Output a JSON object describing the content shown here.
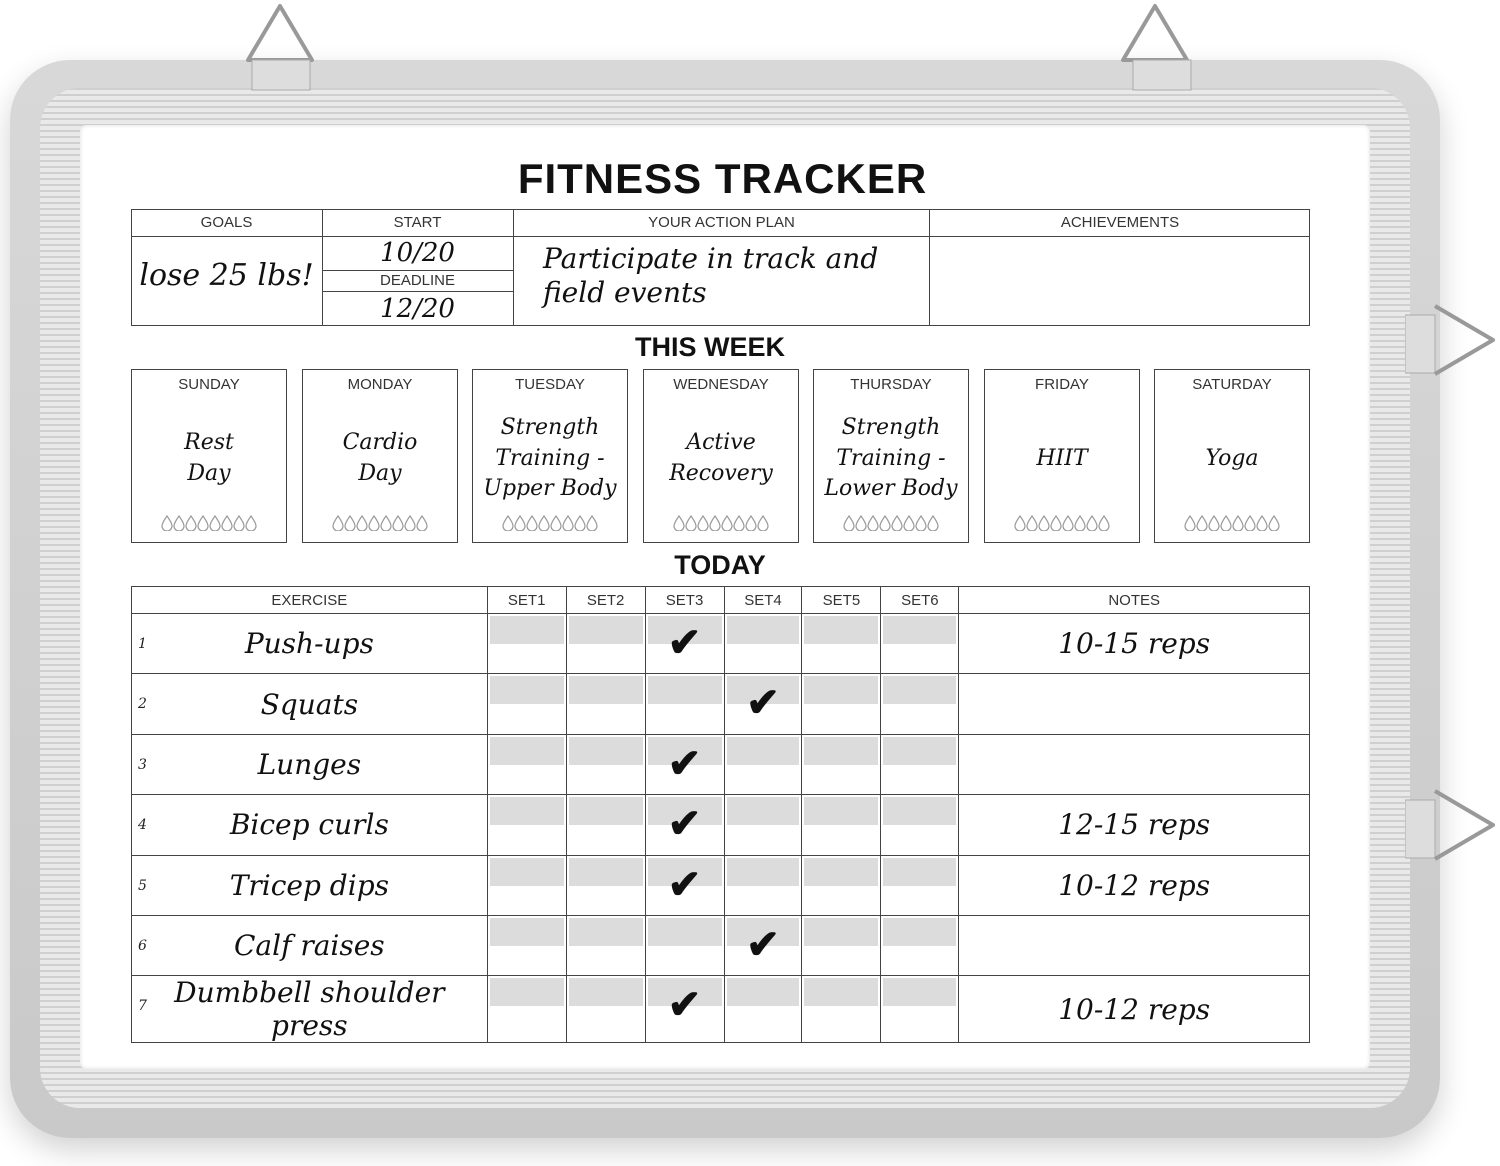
{
  "title": "FITNESS TRACKER",
  "top_table": {
    "goals_label": "GOALS",
    "goals_value": "lose 25 lbs!",
    "start_label": "START",
    "start_value": "10/20",
    "deadline_label": "DEADLINE",
    "deadline_value": "12/20",
    "plan_label": "YOUR ACTION PLAN",
    "plan_value": "Participate in track and\nfield events",
    "achievements_label": "ACHIEVEMENTS",
    "achievements_value": ""
  },
  "this_week": {
    "title": "THIS WEEK",
    "days": [
      {
        "name": "SUNDAY",
        "activity": "Rest\nDay"
      },
      {
        "name": "MONDAY",
        "activity": "Cardio\nDay"
      },
      {
        "name": "TUESDAY",
        "activity": "Strength\nTraining -\nUpper Body"
      },
      {
        "name": "WEDNESDAY",
        "activity": "Active\nRecovery"
      },
      {
        "name": "THURSDAY",
        "activity": "Strength\nTraining -\nLower Body"
      },
      {
        "name": "FRIDAY",
        "activity": "HIIT"
      },
      {
        "name": "SATURDAY",
        "activity": "Yoga"
      }
    ],
    "water_drops_per_day": 8
  },
  "today": {
    "title": "TODAY",
    "headers": {
      "exercise": "EXERCISE",
      "sets": [
        "SET1",
        "SET2",
        "SET3",
        "SET4",
        "SET5",
        "SET6"
      ],
      "notes": "NOTES"
    },
    "rows": [
      {
        "num": "1",
        "exercise": "Push-ups",
        "checked_set": 3,
        "notes": "10-15 reps"
      },
      {
        "num": "2",
        "exercise": "Squats",
        "checked_set": 4,
        "notes": ""
      },
      {
        "num": "3",
        "exercise": "Lunges",
        "checked_set": 3,
        "notes": ""
      },
      {
        "num": "4",
        "exercise": "Bicep curls",
        "checked_set": 3,
        "notes": "12-15 reps"
      },
      {
        "num": "5",
        "exercise": "Tricep dips",
        "checked_set": 3,
        "notes": "10-12 reps"
      },
      {
        "num": "6",
        "exercise": "Calf raises",
        "checked_set": 4,
        "notes": ""
      },
      {
        "num": "7",
        "exercise": "Dumbbell shoulder press",
        "checked_set": 3,
        "notes": "10-12 reps"
      }
    ]
  },
  "colors": {
    "frame": "#c9c9c9",
    "ink": "#111111",
    "band": "#dcdcdc"
  }
}
